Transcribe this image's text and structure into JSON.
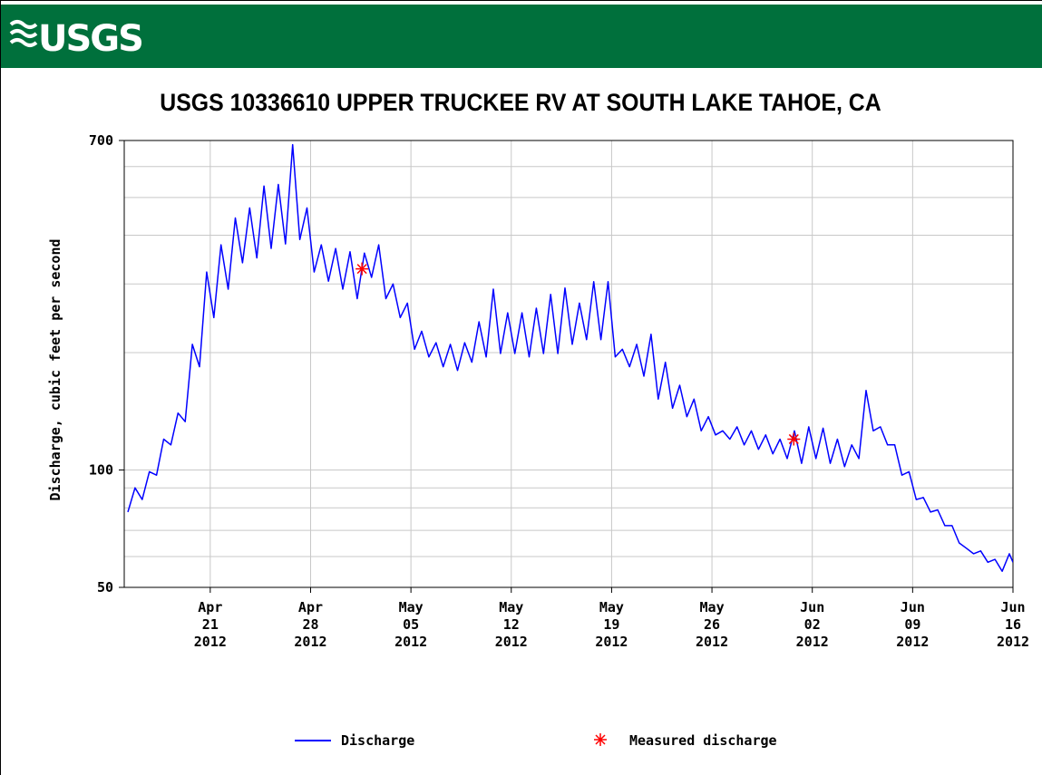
{
  "logo": "USGS",
  "chart_data": {
    "type": "line",
    "title": "USGS 10336610 UPPER TRUCKEE RV AT SOUTH LAKE TAHOE, CA",
    "ylabel": "Discharge, cubic feet per second",
    "log_y": true,
    "grid": true,
    "legend": "bottom",
    "xlim": [
      "2012-04-15",
      "2012-06-16"
    ],
    "xticks": [
      {
        "value": "2012-04-21",
        "label": "Apr 21 2012"
      },
      {
        "value": "2012-04-28",
        "label": "Apr 28 2012"
      },
      {
        "value": "2012-05-05",
        "label": "May 05 2012"
      },
      {
        "value": "2012-05-12",
        "label": "May 12 2012"
      },
      {
        "value": "2012-05-19",
        "label": "May 19 2012"
      },
      {
        "value": "2012-05-26",
        "label": "May 26 2012"
      },
      {
        "value": "2012-06-02",
        "label": "Jun 02 2012"
      },
      {
        "value": "2012-06-09",
        "label": "Jun 09 2012"
      },
      {
        "value": "2012-06-16",
        "label": "Jun 16 2012"
      }
    ],
    "ylim": [
      50,
      700
    ],
    "yticks": [
      50,
      100,
      700
    ],
    "y_minor_ticks": [
      60,
      70,
      80,
      90,
      200,
      300,
      400,
      500,
      600
    ],
    "x": [
      "2012-04-15T06:00",
      "2012-04-15T18:00",
      "2012-04-16T06:00",
      "2012-04-16T18:00",
      "2012-04-17T06:00",
      "2012-04-17T18:00",
      "2012-04-18T06:00",
      "2012-04-18T18:00",
      "2012-04-19T06:00",
      "2012-04-19T18:00",
      "2012-04-20T06:00",
      "2012-04-20T18:00",
      "2012-04-21T06:00",
      "2012-04-21T18:00",
      "2012-04-22T06:00",
      "2012-04-22T18:00",
      "2012-04-23T06:00",
      "2012-04-23T18:00",
      "2012-04-24T06:00",
      "2012-04-24T18:00",
      "2012-04-25T06:00",
      "2012-04-25T18:00",
      "2012-04-26T06:00",
      "2012-04-26T18:00",
      "2012-04-27T06:00",
      "2012-04-27T18:00",
      "2012-04-28T06:00",
      "2012-04-28T18:00",
      "2012-04-29T06:00",
      "2012-04-29T18:00",
      "2012-04-30T06:00",
      "2012-04-30T18:00",
      "2012-05-01T06:00",
      "2012-05-01T18:00",
      "2012-05-02T06:00",
      "2012-05-02T18:00",
      "2012-05-03T06:00",
      "2012-05-03T18:00",
      "2012-05-04T06:00",
      "2012-05-04T18:00",
      "2012-05-05T06:00",
      "2012-05-05T18:00",
      "2012-05-06T06:00",
      "2012-05-06T18:00",
      "2012-05-07T06:00",
      "2012-05-07T18:00",
      "2012-05-08T06:00",
      "2012-05-08T18:00",
      "2012-05-09T06:00",
      "2012-05-09T18:00",
      "2012-05-10T06:00",
      "2012-05-10T18:00",
      "2012-05-11T06:00",
      "2012-05-11T18:00",
      "2012-05-12T06:00",
      "2012-05-12T18:00",
      "2012-05-13T06:00",
      "2012-05-13T18:00",
      "2012-05-14T06:00",
      "2012-05-14T18:00",
      "2012-05-15T06:00",
      "2012-05-15T18:00",
      "2012-05-16T06:00",
      "2012-05-16T18:00",
      "2012-05-17T06:00",
      "2012-05-17T18:00",
      "2012-05-18T06:00",
      "2012-05-18T18:00",
      "2012-05-19T06:00",
      "2012-05-19T18:00",
      "2012-05-20T06:00",
      "2012-05-20T18:00",
      "2012-05-21T06:00",
      "2012-05-21T18:00",
      "2012-05-22T06:00",
      "2012-05-22T18:00",
      "2012-05-23T06:00",
      "2012-05-23T18:00",
      "2012-05-24T06:00",
      "2012-05-24T18:00",
      "2012-05-25T06:00",
      "2012-05-25T18:00",
      "2012-05-26T06:00",
      "2012-05-26T18:00",
      "2012-05-27T06:00",
      "2012-05-27T18:00",
      "2012-05-28T06:00",
      "2012-05-28T18:00",
      "2012-05-29T06:00",
      "2012-05-29T18:00",
      "2012-05-30T06:00",
      "2012-05-30T18:00",
      "2012-05-31T06:00",
      "2012-05-31T18:00",
      "2012-06-01T06:00",
      "2012-06-01T18:00",
      "2012-06-02T06:00",
      "2012-06-02T18:00",
      "2012-06-03T06:00",
      "2012-06-03T18:00",
      "2012-06-04T06:00",
      "2012-06-04T18:00",
      "2012-06-05T06:00",
      "2012-06-05T18:00",
      "2012-06-06T06:00",
      "2012-06-06T18:00",
      "2012-06-07T06:00",
      "2012-06-07T18:00",
      "2012-06-08T06:00",
      "2012-06-08T18:00",
      "2012-06-09T06:00",
      "2012-06-09T18:00",
      "2012-06-10T06:00",
      "2012-06-10T18:00",
      "2012-06-11T06:00",
      "2012-06-11T18:00",
      "2012-06-12T06:00",
      "2012-06-12T18:00",
      "2012-06-13T06:00",
      "2012-06-13T18:00",
      "2012-06-14T06:00",
      "2012-06-14T18:00",
      "2012-06-15T06:00",
      "2012-06-15T18:00",
      "2012-06-16T00:00"
    ],
    "series": [
      {
        "name": "Discharge",
        "color": "#0000ff",
        "values": [
          78,
          90,
          84,
          99,
          97,
          120,
          116,
          140,
          133,
          210,
          184,
          322,
          246,
          378,
          291,
          443,
          340,
          470,
          350,
          535,
          370,
          540,
          380,
          683,
          390,
          470,
          322,
          378,
          305,
          370,
          291,
          363,
          275,
          360,
          312,
          378,
          275,
          300,
          246,
          268,
          204,
          227,
          195,
          212,
          184,
          210,
          180,
          212,
          189,
          240,
          195,
          291,
          199,
          253,
          199,
          253,
          195,
          260,
          199,
          282,
          199,
          293,
          210,
          268,
          216,
          304,
          216,
          304,
          195,
          204,
          184,
          210,
          174,
          223,
          152,
          189,
          144,
          165,
          137,
          152,
          126,
          137,
          123,
          126,
          120,
          129,
          116,
          126,
          113,
          123,
          110,
          120,
          107,
          126,
          104,
          129,
          107,
          128,
          104,
          120,
          102,
          116,
          107,
          160,
          126,
          129,
          116,
          116,
          97,
          99,
          84,
          85,
          78,
          79,
          72,
          72,
          65,
          63,
          61,
          62,
          58,
          59,
          55,
          61,
          58
        ]
      },
      {
        "name": "Measured discharge",
        "color": "#ff0000",
        "marker": "asterisk",
        "x": [
          "2012-05-01T14:00",
          "2012-05-31T17:00"
        ],
        "values": [
          328,
          120
        ]
      }
    ]
  }
}
